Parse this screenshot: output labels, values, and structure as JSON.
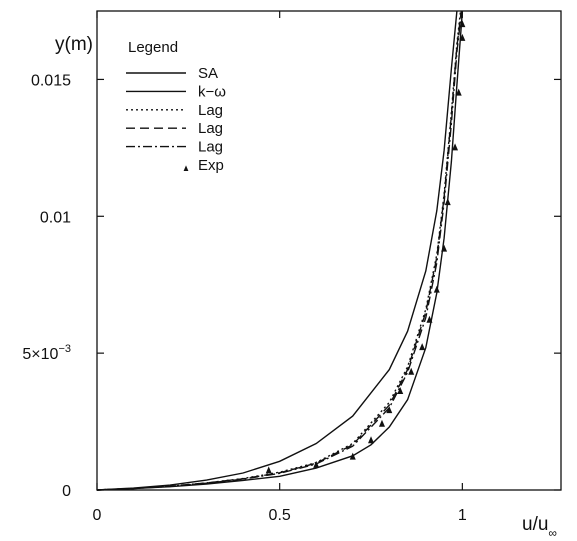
{
  "chart_data": {
    "type": "line",
    "xlabel_main": "u/u",
    "xlabel_sub": "∞",
    "ylabel": "y(m)",
    "xlim": [
      0,
      1.27
    ],
    "ylim": [
      0,
      0.0175
    ],
    "x_ticks": [
      {
        "value": 0,
        "label": "0"
      },
      {
        "value": 0.5,
        "label": "0.5"
      },
      {
        "value": 1,
        "label": "1"
      }
    ],
    "y_ticks": [
      {
        "value": 0,
        "label": "0",
        "exp": ""
      },
      {
        "value": 0.005,
        "label": "5×10",
        "exp": "−3"
      },
      {
        "value": 0.01,
        "label": "0.01",
        "exp": ""
      },
      {
        "value": 0.015,
        "label": "0.015",
        "exp": ""
      }
    ],
    "legend": {
      "title": "Legend",
      "position": "top-left",
      "entries": [
        "SA",
        "k−ω",
        "Lag",
        "Lag",
        "Lag",
        "Exp"
      ]
    },
    "grid": false,
    "series": [
      {
        "name": "SA",
        "style": "solid",
        "points": [
          [
            0,
            0
          ],
          [
            0.1,
            7e-05
          ],
          [
            0.2,
            0.00018
          ],
          [
            0.3,
            0.00036
          ],
          [
            0.4,
            0.00062
          ],
          [
            0.5,
            0.00105
          ],
          [
            0.6,
            0.0017
          ],
          [
            0.7,
            0.0027
          ],
          [
            0.8,
            0.0044
          ],
          [
            0.85,
            0.0058
          ],
          [
            0.9,
            0.008
          ],
          [
            0.93,
            0.0102
          ],
          [
            0.95,
            0.0124
          ],
          [
            0.97,
            0.0154
          ],
          [
            0.985,
            0.018
          ]
        ]
      },
      {
        "name": "k−ω",
        "style": "solid",
        "points": [
          [
            0,
            0
          ],
          [
            0.1,
            5e-05
          ],
          [
            0.2,
            0.00012
          ],
          [
            0.3,
            0.00022
          ],
          [
            0.4,
            0.00035
          ],
          [
            0.5,
            0.0005
          ],
          [
            0.6,
            0.0008
          ],
          [
            0.7,
            0.00125
          ],
          [
            0.75,
            0.00165
          ],
          [
            0.8,
            0.0023
          ],
          [
            0.85,
            0.0033
          ],
          [
            0.9,
            0.0052
          ],
          [
            0.93,
            0.0072
          ],
          [
            0.95,
            0.0092
          ],
          [
            0.97,
            0.012
          ],
          [
            0.985,
            0.0148
          ],
          [
            1.0,
            0.018
          ]
        ]
      },
      {
        "name": "Lag",
        "style": "dotted",
        "points": [
          [
            0,
            0
          ],
          [
            0.1,
            6e-05
          ],
          [
            0.2,
            0.00014
          ],
          [
            0.3,
            0.00026
          ],
          [
            0.4,
            0.00042
          ],
          [
            0.5,
            0.00065
          ],
          [
            0.6,
            0.001
          ],
          [
            0.7,
            0.0017
          ],
          [
            0.8,
            0.0032
          ],
          [
            0.85,
            0.0045
          ],
          [
            0.9,
            0.0066
          ],
          [
            0.93,
            0.0086
          ],
          [
            0.95,
            0.0108
          ],
          [
            0.97,
            0.0138
          ],
          [
            0.985,
            0.0163
          ],
          [
            0.995,
            0.018
          ]
        ]
      },
      {
        "name": "Lag",
        "style": "dashed",
        "points": [
          [
            0,
            0
          ],
          [
            0.1,
            6e-05
          ],
          [
            0.2,
            0.00014
          ],
          [
            0.3,
            0.00026
          ],
          [
            0.4,
            0.00041
          ],
          [
            0.5,
            0.00063
          ],
          [
            0.6,
            0.00098
          ],
          [
            0.7,
            0.00165
          ],
          [
            0.8,
            0.0031
          ],
          [
            0.85,
            0.0044
          ],
          [
            0.9,
            0.0065
          ],
          [
            0.93,
            0.0085
          ],
          [
            0.95,
            0.0107
          ],
          [
            0.97,
            0.0137
          ],
          [
            0.985,
            0.0162
          ],
          [
            0.997,
            0.018
          ]
        ]
      },
      {
        "name": "Lag",
        "style": "dashdot",
        "points": [
          [
            0,
            0
          ],
          [
            0.1,
            5.5e-05
          ],
          [
            0.2,
            0.00013
          ],
          [
            0.3,
            0.00025
          ],
          [
            0.4,
            0.0004
          ],
          [
            0.5,
            0.00061
          ],
          [
            0.6,
            0.00095
          ],
          [
            0.7,
            0.0016
          ],
          [
            0.8,
            0.003
          ],
          [
            0.85,
            0.0043
          ],
          [
            0.9,
            0.0063
          ],
          [
            0.93,
            0.0083
          ],
          [
            0.95,
            0.0105
          ],
          [
            0.97,
            0.0134
          ],
          [
            0.985,
            0.016
          ],
          [
            0.998,
            0.018
          ]
        ]
      },
      {
        "name": "Exp",
        "style": "markers",
        "points": [
          [
            0.47,
            0.0007
          ],
          [
            0.6,
            0.0009
          ],
          [
            0.7,
            0.0012
          ],
          [
            0.75,
            0.0018
          ],
          [
            0.78,
            0.0024
          ],
          [
            0.8,
            0.0029
          ],
          [
            0.83,
            0.0036
          ],
          [
            0.86,
            0.0043
          ],
          [
            0.89,
            0.0052
          ],
          [
            0.91,
            0.0062
          ],
          [
            0.93,
            0.0073
          ],
          [
            0.95,
            0.0088
          ],
          [
            0.96,
            0.0105
          ],
          [
            0.98,
            0.0125
          ],
          [
            0.99,
            0.0145
          ],
          [
            1.0,
            0.0165
          ],
          [
            1.0,
            0.017
          ]
        ]
      }
    ]
  }
}
